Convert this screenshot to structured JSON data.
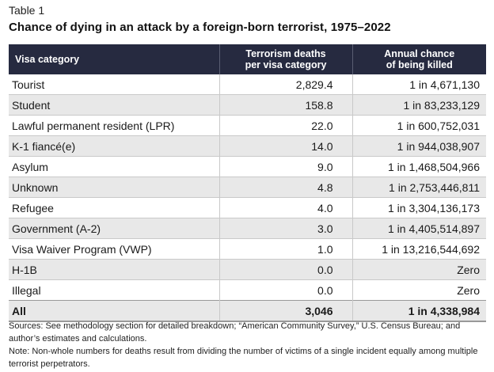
{
  "table_label": "Table 1",
  "title": "Chance of dying in an attack by a foreign-born terrorist, 1975–2022",
  "columns": {
    "category": "Visa category",
    "deaths_line1": "Terrorism deaths",
    "deaths_line2": "per visa category",
    "chance_line1": "Annual chance",
    "chance_line2": "of being killed"
  },
  "rows": [
    {
      "category": "Tourist",
      "deaths": "2,829.4",
      "chance": "1 in 4,671,130"
    },
    {
      "category": "Student",
      "deaths": "158.8",
      "chance": "1 in 83,233,129"
    },
    {
      "category": "Lawful permanent resident (LPR)",
      "deaths": "22.0",
      "chance": "1 in 600,752,031"
    },
    {
      "category": "K-1 fiancé(e)",
      "deaths": "14.0",
      "chance": "1 in 944,038,907"
    },
    {
      "category": "Asylum",
      "deaths": "9.0",
      "chance": "1 in 1,468,504,966"
    },
    {
      "category": "Unknown",
      "deaths": "4.8",
      "chance": "1 in 2,753,446,811"
    },
    {
      "category": "Refugee",
      "deaths": "4.0",
      "chance": "1 in 3,304,136,173"
    },
    {
      "category": "Government (A-2)",
      "deaths": "3.0",
      "chance": "1 in 4,405,514,897"
    },
    {
      "category": "Visa Waiver Program (VWP)",
      "deaths": "1.0",
      "chance": "1 in 13,216,544,692"
    },
    {
      "category": "H-1B",
      "deaths": "0.0",
      "chance": "Zero"
    },
    {
      "category": "Illegal",
      "deaths": "0.0",
      "chance": "Zero"
    }
  ],
  "total": {
    "category": "All",
    "deaths": "3,046",
    "chance": "1 in 4,338,984"
  },
  "sources": "Sources: See methodology section for detailed breakdown; “American Community Survey,” U.S. Census Bureau; and author’s estimates and calculations.",
  "note": "Note: Non-whole numbers for deaths result from dividing the number of victims of a single incident equally among multiple terrorist perpetrators.",
  "colors": {
    "header_bg": "#262a40",
    "stripe": "#e8e8e8"
  }
}
